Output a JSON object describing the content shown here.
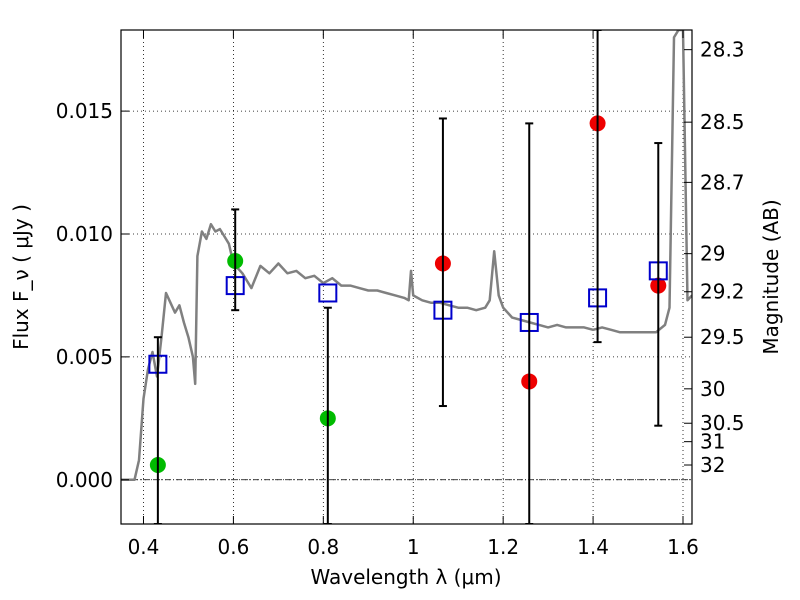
{
  "chart_data": {
    "type": "scatter",
    "xlabel": "Wavelength  λ (μm)",
    "ylabel": "Flux  F_ν  ( μJy )",
    "ylabel_right": "Magnitude (AB)",
    "xlim": [
      0.35,
      1.62
    ],
    "ylim": [
      -0.0018,
      0.0183
    ],
    "x_ticks": [
      0.4,
      0.6,
      0.8,
      1.0,
      1.2,
      1.4,
      1.6
    ],
    "x_tick_labels": [
      "0.4",
      "0.6",
      "0.8",
      "1",
      "1.2",
      "1.4",
      "1.6"
    ],
    "y_ticks": [
      0.0,
      0.005,
      0.01,
      0.015
    ],
    "y_tick_labels": [
      "0.000",
      "0.005",
      "0.010",
      "0.015"
    ],
    "right_ticks": [
      {
        "label": "28.3",
        "flux": 0.0175
      },
      {
        "label": "28.5",
        "flux": 0.01455
      },
      {
        "label": "28.7",
        "flux": 0.0121
      },
      {
        "label": "29",
        "flux": 0.0092
      },
      {
        "label": "29.2",
        "flux": 0.00765
      },
      {
        "label": "29.5",
        "flux": 0.0058
      },
      {
        "label": "30",
        "flux": 0.0037
      },
      {
        "label": "30.5",
        "flux": 0.0023
      },
      {
        "label": "31",
        "flux": 0.00155
      },
      {
        "label": "32",
        "flux": 0.0006
      }
    ],
    "grid": true,
    "colors": {
      "model": "#808080",
      "green": "#00bb00",
      "red": "#ee0000",
      "model_points": "#0000cc",
      "errorbar": "#000000"
    },
    "series": [
      {
        "marker": "line",
        "x": [
          0.35,
          0.38,
          0.39,
          0.4,
          0.41,
          0.42,
          0.43,
          0.44,
          0.45,
          0.46,
          0.47,
          0.48,
          0.49,
          0.5,
          0.51,
          0.515,
          0.52,
          0.53,
          0.54,
          0.55,
          0.56,
          0.57,
          0.58,
          0.59,
          0.6,
          0.61,
          0.62,
          0.64,
          0.66,
          0.68,
          0.7,
          0.72,
          0.74,
          0.76,
          0.78,
          0.8,
          0.82,
          0.84,
          0.86,
          0.88,
          0.9,
          0.92,
          0.94,
          0.96,
          0.98,
          0.99,
          0.995,
          1.0,
          1.02,
          1.04,
          1.06,
          1.08,
          1.1,
          1.12,
          1.14,
          1.16,
          1.17,
          1.18,
          1.19,
          1.2,
          1.22,
          1.24,
          1.26,
          1.28,
          1.3,
          1.32,
          1.34,
          1.36,
          1.38,
          1.4,
          1.42,
          1.44,
          1.46,
          1.48,
          1.5,
          1.52,
          1.54,
          1.56,
          1.57,
          1.58,
          1.59,
          1.6,
          1.61,
          1.62
        ],
        "y": [
          0.0,
          0.0,
          0.0008,
          0.0033,
          0.0045,
          0.0052,
          0.0042,
          0.0058,
          0.0076,
          0.0072,
          0.0068,
          0.0071,
          0.0064,
          0.0058,
          0.005,
          0.0039,
          0.0091,
          0.0101,
          0.0098,
          0.0104,
          0.0101,
          0.0102,
          0.0099,
          0.0096,
          0.0088,
          0.0086,
          0.0084,
          0.0078,
          0.0087,
          0.0084,
          0.0088,
          0.0084,
          0.0085,
          0.0082,
          0.0083,
          0.008,
          0.0082,
          0.0079,
          0.0079,
          0.0078,
          0.0077,
          0.0077,
          0.0076,
          0.0075,
          0.0074,
          0.0073,
          0.0085,
          0.0075,
          0.0073,
          0.0072,
          0.0072,
          0.0071,
          0.007,
          0.007,
          0.0069,
          0.007,
          0.0073,
          0.0093,
          0.0075,
          0.007,
          0.0066,
          0.0065,
          0.0064,
          0.0063,
          0.0062,
          0.0063,
          0.0062,
          0.0062,
          0.0062,
          0.0061,
          0.0062,
          0.0061,
          0.006,
          0.006,
          0.006,
          0.006,
          0.006,
          0.0063,
          0.007,
          0.018,
          0.0183,
          0.0183,
          0.0073,
          0.0075
        ]
      },
      {
        "marker": "circle",
        "color": "green",
        "x": [
          0.432,
          0.604,
          0.81
        ],
        "y": [
          0.0006,
          0.0089,
          0.0025
        ]
      },
      {
        "marker": "circle",
        "color": "red",
        "x": [
          1.066,
          1.258,
          1.41,
          1.545
        ],
        "y": [
          0.0088,
          0.004,
          0.0145,
          0.0079
        ]
      },
      {
        "marker": "square",
        "color": "model_points",
        "x": [
          0.432,
          0.604,
          0.81,
          1.066,
          1.258,
          1.41,
          1.545
        ],
        "y": [
          0.0047,
          0.0079,
          0.0076,
          0.0069,
          0.0064,
          0.0074,
          0.0085
        ]
      },
      {
        "marker": "errorbar",
        "x": [
          0.432,
          0.604,
          0.81,
          1.066,
          1.258,
          1.41,
          1.545
        ],
        "low": [
          -0.0018,
          0.0069,
          -0.0018,
          0.003,
          -0.0018,
          0.0056,
          0.0022
        ],
        "high": [
          0.0058,
          0.011,
          0.007,
          0.0147,
          0.0145,
          0.0183,
          0.0137
        ]
      }
    ]
  }
}
